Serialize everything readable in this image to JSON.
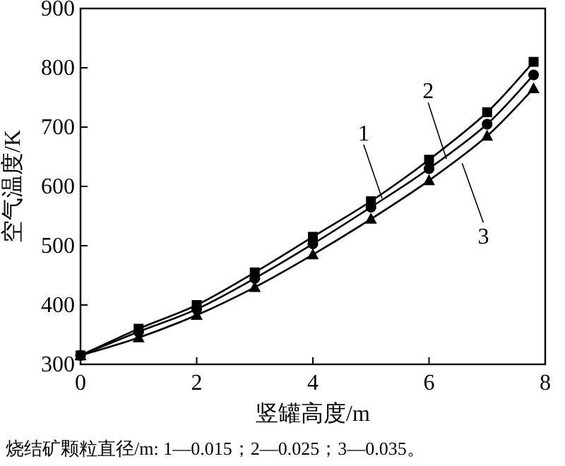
{
  "chart_data": {
    "type": "line",
    "xlabel": "竖罐高度/m",
    "ylabel": "空气温度/K",
    "x": [
      0,
      1,
      2,
      3,
      4,
      5,
      6,
      7,
      7.8
    ],
    "series": [
      {
        "color": "#000000",
        "marker": "square",
        "values": [
          315,
          360,
          400,
          455,
          515,
          575,
          645,
          725,
          810
        ]
      },
      {
        "color": "#000000",
        "marker": "circle",
        "values": [
          315,
          355,
          393,
          445,
          503,
          565,
          630,
          705,
          788
        ]
      },
      {
        "color": "#000000",
        "marker": "triangle",
        "values": [
          315,
          345,
          383,
          430,
          485,
          545,
          610,
          685,
          765
        ]
      }
    ],
    "xlim": [
      0,
      8
    ],
    "ylim": [
      300,
      900
    ],
    "xticks": [
      0,
      2,
      4,
      6,
      8
    ],
    "yticks": [
      300,
      400,
      500,
      600,
      700,
      800,
      900
    ],
    "grid": false,
    "line_style": "solid",
    "annotations": [
      {
        "text": "1",
        "x": 5.19,
        "y": 580
      },
      {
        "text": "2",
        "x": 6.3,
        "y": 646
      },
      {
        "text": "3",
        "x": 6.57,
        "y": 639
      },
      "烧结矿颗粒直径/m: 1—0.015；2—0.025；3—0.035。"
    ]
  }
}
